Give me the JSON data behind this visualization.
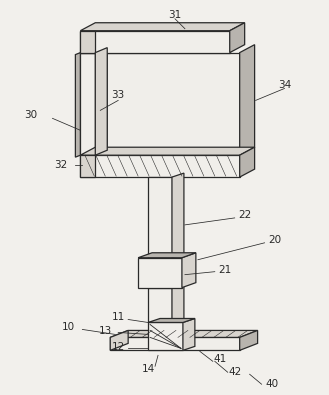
{
  "bg_color": "#f2f0ec",
  "line_color": "#2a2a2a",
  "fill_light": "#f0eeea",
  "fill_mid": "#d8d4ce",
  "fill_dark": "#b8b4ae",
  "fill_white": "#ffffff",
  "label_color": "#2a2a2a"
}
